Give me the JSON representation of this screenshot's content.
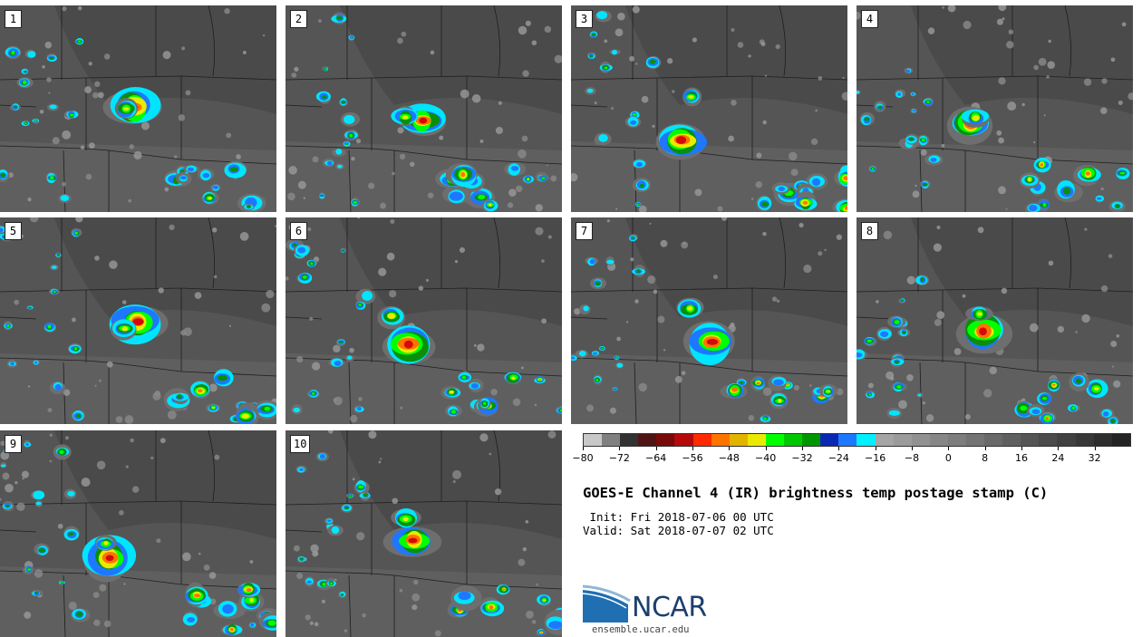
{
  "title": "GOES-E Channel 4 (IR) brightness temp postage stamp (C)",
  "init_line": " Init: Fri 2018-07-06 00 UTC",
  "valid_line": "Valid: Sat 2018-07-07 02 UTC",
  "logo_text": "NCAR",
  "site_text": "ensemble.ucar.edu",
  "members": [
    {
      "label": "1"
    },
    {
      "label": "2"
    },
    {
      "label": "3"
    },
    {
      "label": "4"
    },
    {
      "label": "5"
    },
    {
      "label": "6"
    },
    {
      "label": "7"
    },
    {
      "label": "8"
    },
    {
      "label": "9"
    },
    {
      "label": "10"
    }
  ],
  "colorbar": {
    "min": -80,
    "max": 40,
    "step": 4,
    "tick_labels": [
      "-80",
      "-72",
      "-64",
      "-56",
      "-48",
      "-40",
      "-32",
      "-24",
      "-16",
      "-8",
      "0",
      "8",
      "16",
      "24",
      "32"
    ],
    "colors": [
      "#c8c8c8",
      "#808080",
      "#323232",
      "#501414",
      "#780a0a",
      "#b40a0a",
      "#ff2a00",
      "#ff7300",
      "#e1b400",
      "#eaea00",
      "#00ff00",
      "#00c800",
      "#009600",
      "#0a28b4",
      "#1e78ff",
      "#00f0ff",
      "#a5a5a5",
      "#9b9b9b",
      "#919191",
      "#878787",
      "#7d7d7d",
      "#737373",
      "#696969",
      "#5f5f5f",
      "#555555",
      "#4b4b4b",
      "#414141",
      "#373737",
      "#2d2d2d",
      "#232323"
    ]
  }
}
